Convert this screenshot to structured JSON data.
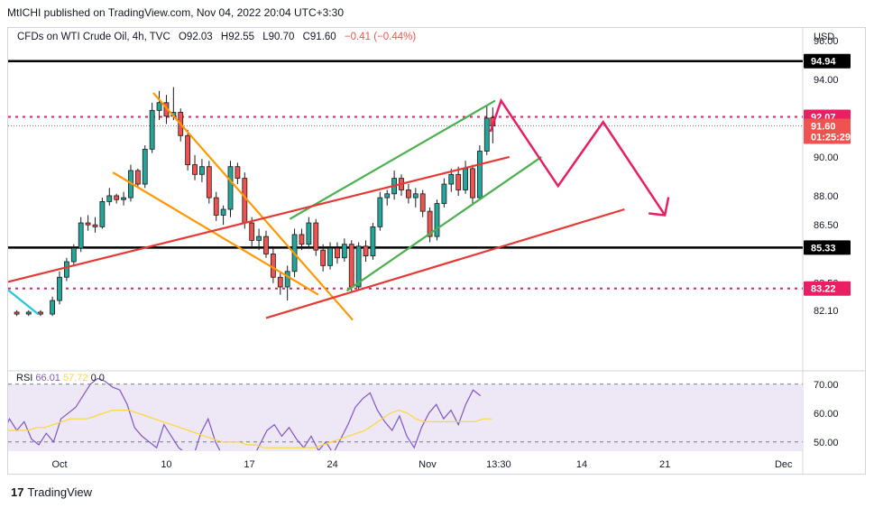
{
  "publisher_line": "MtICHI published on TradingView.com, Nov 04, 2022 20:04 UTC+3:30",
  "legend": {
    "symbol": "CFDs on WTI Crude Oil, 4h, TVC",
    "open": "O92.03",
    "high": "H92.55",
    "low": "L90.70",
    "close": "C91.60",
    "change": "−0.41 (−0.44%)"
  },
  "rsi_legend": {
    "label": "RSI",
    "value": "66.01",
    "extra": "57.72",
    "c1": "0",
    "c2": "0"
  },
  "footer_brand": "TradingView",
  "colors": {
    "up": "#26a69a",
    "down": "#ef5350",
    "candle": "#1b1b1b",
    "black_line": "#000000",
    "orange": "#ff9800",
    "green": "#4caf50",
    "red_line": "#e53935",
    "pink": "#e91e63",
    "cyan": "#26c6da",
    "rsi": "#7e57c2",
    "rsi_ma": "#fdd835",
    "rsi_band": "#ede7f6"
  },
  "chart_data": {
    "type": "candlestick",
    "title": "CFDs on WTI Crude Oil, 4h, TVC",
    "currency": "USD",
    "ylim": [
      81.7,
      97.3
    ],
    "y_ticks": [
      "96.00",
      "94.00",
      "90.00",
      "88.00",
      "86.50",
      "83.50",
      "82.10"
    ],
    "x_ticks": [
      "Oct",
      "10",
      "17",
      "24",
      "Nov",
      "13:30",
      "14",
      "21",
      "Dec"
    ],
    "x_tick_days": [
      1,
      10,
      17,
      24,
      32,
      38,
      45,
      52,
      62
    ],
    "x_unit": "days since Sep 30, 2022",
    "price_tags": [
      {
        "label": "94.94",
        "value": 94.94,
        "color": "#000000"
      },
      {
        "label": "92.07",
        "value": 92.07,
        "color": "#e91e63"
      },
      {
        "label": "91.60",
        "value": 91.6,
        "color": "#ef5350",
        "sub": "01:25:29"
      },
      {
        "label": "85.33",
        "value": 85.33,
        "color": "#000000"
      },
      {
        "label": "83.22",
        "value": 83.22,
        "color": "#e91e63"
      }
    ],
    "horizontal_lines": [
      {
        "name": "resistance",
        "value": 94.94,
        "style": "solid",
        "color": "#000000"
      },
      {
        "name": "support",
        "value": 85.33,
        "style": "solid",
        "color": "#000000"
      },
      {
        "name": "level-upper",
        "value": 92.07,
        "style": "dotted",
        "color": "#e91e63"
      },
      {
        "name": "level-lower",
        "value": 83.22,
        "style": "dotted",
        "color": "#e91e63"
      }
    ],
    "trend_lines": [
      {
        "name": "orange-falling-upper",
        "color": "#ff9800",
        "points": [
          [
            8.9,
            93.3
          ],
          [
            25.7,
            81.6
          ]
        ]
      },
      {
        "name": "orange-falling-lower",
        "color": "#ff9800",
        "points": [
          [
            5.5,
            89.2
          ],
          [
            22.8,
            82.9
          ]
        ]
      },
      {
        "name": "green-channel-top",
        "color": "#4caf50",
        "points": [
          [
            20.4,
            86.8
          ],
          [
            37.7,
            92.9
          ]
        ]
      },
      {
        "name": "green-channel-bottom",
        "color": "#4caf50",
        "points": [
          [
            25.2,
            83.1
          ],
          [
            41.6,
            90.0
          ]
        ]
      },
      {
        "name": "red-trend-upper",
        "color": "#e53935",
        "points": [
          [
            -5.7,
            83.2
          ],
          [
            38.9,
            90.0
          ]
        ]
      },
      {
        "name": "red-trend-lower",
        "color": "#e53935",
        "points": [
          [
            18.4,
            81.7
          ],
          [
            48.6,
            87.3
          ]
        ]
      },
      {
        "name": "cyan-line",
        "color": "#26c6da",
        "points": [
          [
            -5.7,
            84.3
          ],
          [
            -0.8,
            81.9
          ]
        ]
      }
    ],
    "projection_path": [
      [
        37.3,
        91.3
      ],
      [
        38.2,
        92.9
      ],
      [
        43.0,
        88.5
      ],
      [
        46.8,
        91.8
      ],
      [
        52.0,
        87.0
      ]
    ],
    "candles": [
      {
        "t": -5.6,
        "o": 81.9,
        "h": 82.1,
        "l": 81.8,
        "c": 82.0
      },
      {
        "t": -4.6,
        "o": 82.0,
        "h": 82.2,
        "l": 81.8,
        "c": 81.9
      },
      {
        "t": -3.6,
        "o": 81.9,
        "h": 82.1,
        "l": 81.8,
        "c": 82.0
      },
      {
        "t": -2.6,
        "o": 82.0,
        "h": 82.1,
        "l": 81.8,
        "c": 81.9
      },
      {
        "t": -1.6,
        "o": 81.9,
        "h": 82.1,
        "l": 81.8,
        "c": 82.0
      },
      {
        "t": -0.6,
        "o": 82.0,
        "h": 82.1,
        "l": 81.8,
        "c": 81.9
      },
      {
        "t": 0.4,
        "o": 81.9,
        "h": 82.8,
        "l": 81.8,
        "c": 82.6
      },
      {
        "t": 1.0,
        "o": 82.6,
        "h": 84.1,
        "l": 82.4,
        "c": 83.8
      },
      {
        "t": 1.6,
        "o": 83.8,
        "h": 84.8,
        "l": 83.6,
        "c": 84.6
      },
      {
        "t": 2.2,
        "o": 84.6,
        "h": 85.5,
        "l": 84.4,
        "c": 85.3
      },
      {
        "t": 2.8,
        "o": 85.3,
        "h": 86.9,
        "l": 85.1,
        "c": 86.6
      },
      {
        "t": 3.4,
        "o": 86.6,
        "h": 87.0,
        "l": 86.2,
        "c": 86.5
      },
      {
        "t": 4.0,
        "o": 86.5,
        "h": 86.9,
        "l": 86.1,
        "c": 86.4
      },
      {
        "t": 4.6,
        "o": 86.4,
        "h": 87.9,
        "l": 86.3,
        "c": 87.7
      },
      {
        "t": 5.2,
        "o": 87.7,
        "h": 88.4,
        "l": 87.5,
        "c": 88.0
      },
      {
        "t": 5.8,
        "o": 88.0,
        "h": 88.1,
        "l": 87.6,
        "c": 87.8
      },
      {
        "t": 6.4,
        "o": 87.8,
        "h": 88.2,
        "l": 87.5,
        "c": 87.9
      },
      {
        "t": 7.0,
        "o": 87.9,
        "h": 89.6,
        "l": 87.7,
        "c": 89.3
      },
      {
        "t": 7.6,
        "o": 89.3,
        "h": 89.4,
        "l": 88.4,
        "c": 88.6
      },
      {
        "t": 8.2,
        "o": 88.6,
        "h": 90.6,
        "l": 88.4,
        "c": 90.4
      },
      {
        "t": 8.8,
        "o": 90.4,
        "h": 92.8,
        "l": 90.2,
        "c": 92.4
      },
      {
        "t": 9.4,
        "o": 92.4,
        "h": 93.4,
        "l": 91.9,
        "c": 92.8
      },
      {
        "t": 10.0,
        "o": 92.8,
        "h": 93.2,
        "l": 91.7,
        "c": 92.1
      },
      {
        "t": 10.6,
        "o": 92.1,
        "h": 93.6,
        "l": 91.9,
        "c": 92.3
      },
      {
        "t": 11.2,
        "o": 92.3,
        "h": 92.5,
        "l": 90.8,
        "c": 91.1
      },
      {
        "t": 11.8,
        "o": 91.1,
        "h": 91.4,
        "l": 89.3,
        "c": 89.6
      },
      {
        "t": 12.4,
        "o": 89.6,
        "h": 90.1,
        "l": 88.8,
        "c": 89.1
      },
      {
        "t": 13.0,
        "o": 89.1,
        "h": 89.9,
        "l": 88.7,
        "c": 89.5
      },
      {
        "t": 13.6,
        "o": 89.5,
        "h": 89.8,
        "l": 87.6,
        "c": 87.9
      },
      {
        "t": 14.2,
        "o": 87.9,
        "h": 88.2,
        "l": 86.7,
        "c": 87.0
      },
      {
        "t": 14.8,
        "o": 87.0,
        "h": 87.5,
        "l": 86.5,
        "c": 87.3
      },
      {
        "t": 15.4,
        "o": 87.3,
        "h": 89.8,
        "l": 86.9,
        "c": 89.5
      },
      {
        "t": 16.0,
        "o": 89.5,
        "h": 89.7,
        "l": 88.6,
        "c": 88.9
      },
      {
        "t": 16.6,
        "o": 88.9,
        "h": 89.2,
        "l": 86.3,
        "c": 86.6
      },
      {
        "t": 17.2,
        "o": 86.6,
        "h": 86.9,
        "l": 85.4,
        "c": 85.7
      },
      {
        "t": 17.8,
        "o": 85.7,
        "h": 86.3,
        "l": 85.2,
        "c": 85.9
      },
      {
        "t": 18.4,
        "o": 85.9,
        "h": 86.2,
        "l": 84.8,
        "c": 85.0
      },
      {
        "t": 19.0,
        "o": 85.0,
        "h": 85.3,
        "l": 83.5,
        "c": 83.8
      },
      {
        "t": 19.6,
        "o": 83.8,
        "h": 84.1,
        "l": 82.9,
        "c": 83.3
      },
      {
        "t": 20.2,
        "o": 83.3,
        "h": 84.4,
        "l": 82.6,
        "c": 84.1
      },
      {
        "t": 20.8,
        "o": 84.1,
        "h": 86.3,
        "l": 83.8,
        "c": 86.0
      },
      {
        "t": 21.4,
        "o": 86.0,
        "h": 86.3,
        "l": 85.2,
        "c": 85.5
      },
      {
        "t": 22.0,
        "o": 85.5,
        "h": 86.9,
        "l": 85.3,
        "c": 86.6
      },
      {
        "t": 22.6,
        "o": 86.6,
        "h": 86.8,
        "l": 84.9,
        "c": 85.2
      },
      {
        "t": 23.2,
        "o": 85.2,
        "h": 85.5,
        "l": 84.1,
        "c": 84.4
      },
      {
        "t": 23.8,
        "o": 84.4,
        "h": 85.6,
        "l": 84.2,
        "c": 85.3
      },
      {
        "t": 24.4,
        "o": 85.3,
        "h": 85.6,
        "l": 84.5,
        "c": 84.8
      },
      {
        "t": 25.0,
        "o": 84.8,
        "h": 85.8,
        "l": 84.6,
        "c": 85.5
      },
      {
        "t": 25.6,
        "o": 85.5,
        "h": 85.7,
        "l": 83.0,
        "c": 83.3
      },
      {
        "t": 26.2,
        "o": 83.3,
        "h": 85.6,
        "l": 83.1,
        "c": 85.4
      },
      {
        "t": 26.8,
        "o": 85.4,
        "h": 85.7,
        "l": 84.6,
        "c": 84.9
      },
      {
        "t": 27.4,
        "o": 84.9,
        "h": 86.6,
        "l": 84.7,
        "c": 86.4
      },
      {
        "t": 28.0,
        "o": 86.4,
        "h": 88.2,
        "l": 86.2,
        "c": 87.9
      },
      {
        "t": 28.6,
        "o": 87.9,
        "h": 88.3,
        "l": 87.5,
        "c": 88.1
      },
      {
        "t": 29.2,
        "o": 88.1,
        "h": 89.3,
        "l": 87.8,
        "c": 88.9
      },
      {
        "t": 29.8,
        "o": 88.9,
        "h": 89.1,
        "l": 88.0,
        "c": 88.3
      },
      {
        "t": 30.4,
        "o": 88.3,
        "h": 88.6,
        "l": 87.6,
        "c": 87.9
      },
      {
        "t": 31.0,
        "o": 87.9,
        "h": 88.4,
        "l": 87.4,
        "c": 88.1
      },
      {
        "t": 31.6,
        "o": 88.1,
        "h": 88.3,
        "l": 86.9,
        "c": 87.2
      },
      {
        "t": 32.2,
        "o": 87.2,
        "h": 87.4,
        "l": 85.6,
        "c": 85.9
      },
      {
        "t": 32.8,
        "o": 85.9,
        "h": 87.8,
        "l": 85.7,
        "c": 87.6
      },
      {
        "t": 33.4,
        "o": 87.6,
        "h": 88.9,
        "l": 87.4,
        "c": 88.6
      },
      {
        "t": 34.0,
        "o": 88.6,
        "h": 89.4,
        "l": 88.2,
        "c": 89.1
      },
      {
        "t": 34.6,
        "o": 89.1,
        "h": 89.5,
        "l": 88.0,
        "c": 88.3
      },
      {
        "t": 35.2,
        "o": 88.3,
        "h": 89.8,
        "l": 88.1,
        "c": 89.4
      },
      {
        "t": 35.8,
        "o": 89.4,
        "h": 89.6,
        "l": 87.6,
        "c": 87.9
      },
      {
        "t": 36.4,
        "o": 87.9,
        "h": 90.6,
        "l": 87.8,
        "c": 90.3
      },
      {
        "t": 37.0,
        "o": 90.3,
        "h": 92.6,
        "l": 90.1,
        "c": 92.0
      },
      {
        "t": 37.5,
        "o": 92.03,
        "h": 92.55,
        "l": 90.7,
        "c": 91.6
      }
    ],
    "rsi": {
      "name": "RSI",
      "last_value": 66.01,
      "ylim": [
        45,
        74
      ],
      "y_ticks": [
        "70.00",
        "60.00",
        "50.00"
      ],
      "band": [
        30,
        70
      ],
      "series": [
        56,
        57,
        55,
        52,
        58,
        54,
        57,
        51,
        49,
        53,
        50,
        58,
        60,
        62,
        66,
        70,
        72,
        71,
        69,
        68,
        63,
        55,
        52,
        50,
        48,
        56,
        52,
        48,
        46,
        45,
        53,
        58,
        50,
        45,
        44,
        42,
        40,
        44,
        49,
        54,
        56,
        52,
        55,
        51,
        48,
        52,
        47,
        50,
        46,
        51,
        56,
        62,
        65,
        67,
        61,
        57,
        54,
        59,
        52,
        48,
        55,
        60,
        63,
        58,
        61,
        56,
        63,
        68,
        66
      ],
      "ma": [
        54,
        54,
        54,
        54,
        54,
        54,
        55,
        55,
        56,
        57,
        58,
        58,
        58,
        59,
        60,
        61,
        61,
        61,
        60,
        59,
        58,
        57,
        56,
        55,
        54,
        53,
        52,
        51,
        50,
        50,
        50,
        49,
        49,
        48,
        48,
        48,
        48,
        48,
        48,
        48,
        49,
        50,
        51,
        52,
        53,
        54,
        56,
        58,
        60,
        61,
        60,
        58,
        57,
        57,
        57,
        57,
        57,
        57,
        57,
        58,
        58
      ]
    }
  }
}
